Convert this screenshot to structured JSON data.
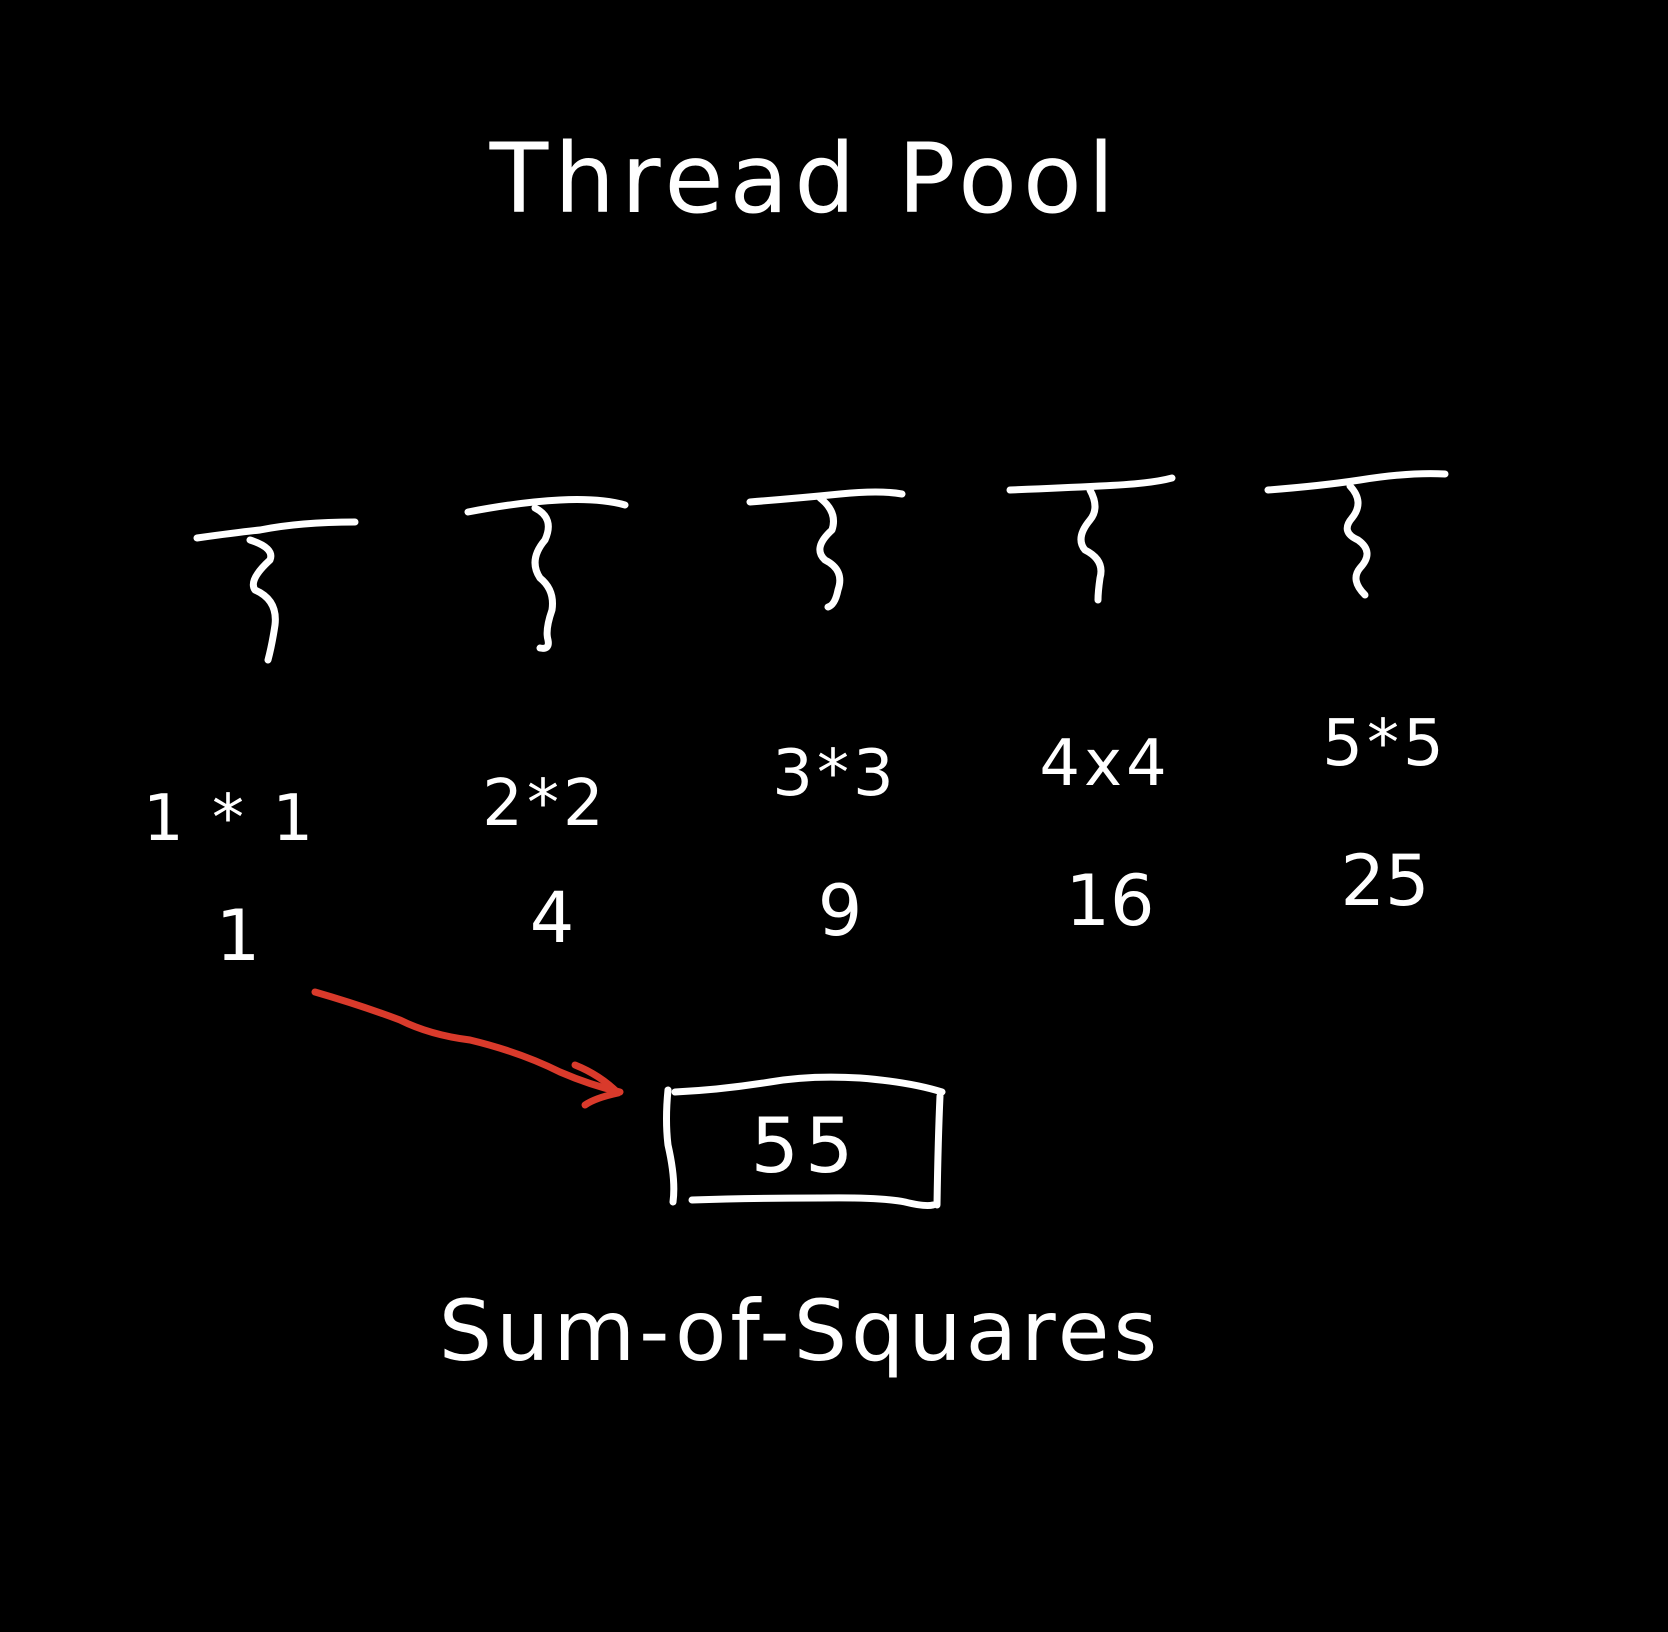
{
  "title": "Thread Pool",
  "threads": [
    {
      "expression": "1 * 1",
      "result": "1"
    },
    {
      "expression": "2*2",
      "result": "4"
    },
    {
      "expression": "3*3",
      "result": "9"
    },
    {
      "expression": "4x4",
      "result": "16"
    },
    {
      "expression": "5*5",
      "result": "25"
    }
  ],
  "total": "55",
  "caption": "Sum-of-Squares",
  "colors": {
    "background": "#000000",
    "ink": "#ffffff",
    "arrow": "#d93a2b"
  }
}
